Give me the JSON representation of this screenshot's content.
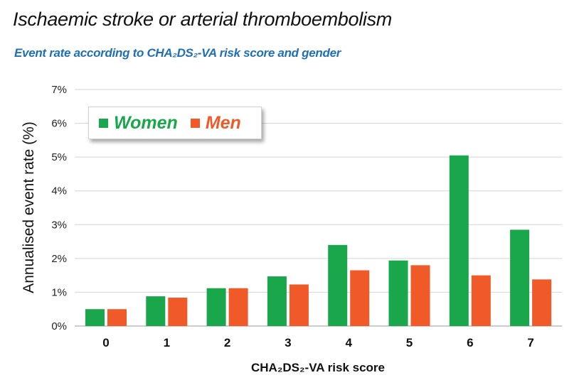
{
  "title": "Ischaemic stroke or arterial thromboembolism",
  "subtitle": "Event rate according to CHA₂DS₂-VA risk score and gender",
  "colors": {
    "women": "#1aa64a",
    "men": "#f05a28",
    "subtitle": "#1f6fb4"
  },
  "chart_data": {
    "type": "bar",
    "categories": [
      "0",
      "1",
      "2",
      "3",
      "4",
      "5",
      "6",
      "7"
    ],
    "series": [
      {
        "name": "Women",
        "color": "#1aa64a",
        "values": [
          0.5,
          0.88,
          1.12,
          1.47,
          2.4,
          1.94,
          5.05,
          2.85
        ]
      },
      {
        "name": "Men",
        "color": "#f05a28",
        "values": [
          0.5,
          0.84,
          1.12,
          1.23,
          1.65,
          1.8,
          1.5,
          1.38
        ]
      }
    ],
    "xlabel": "CHA₂DS₂-VA risk score",
    "ylabel": "Annualised event rate (%)",
    "ylim": [
      0,
      7
    ],
    "yticks": [
      "0%",
      "1%",
      "2%",
      "3%",
      "4%",
      "5%",
      "6%",
      "7%"
    ],
    "grid": true,
    "legend_position": "top-left"
  }
}
